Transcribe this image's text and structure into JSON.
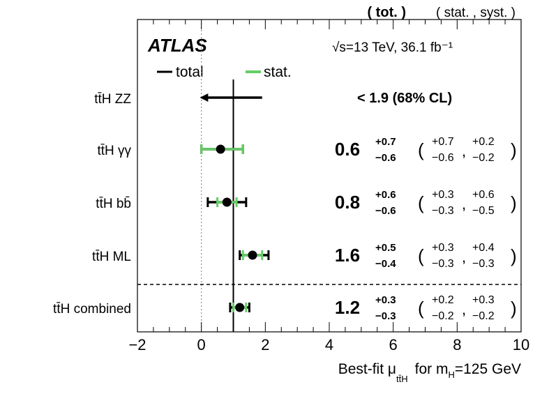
{
  "chart_data": {
    "type": "scatter",
    "experiment": "ATLAS",
    "energy_lumi": "√s=13 TeV, 36.1 fb⁻¹",
    "header_tot": "( tot. )",
    "header_stat_syst": "( stat. , syst. )",
    "legend": {
      "total": "total",
      "stat": "stat."
    },
    "xlabel": "Best-fit μ",
    "xlabel_sub": "tt̄H",
    "xlabel_suffix": "for m",
    "xlabel_suffix_sub": "H",
    "xlabel_end": "=125 GeV",
    "xlim": [
      -2,
      10
    ],
    "xticks": [
      "−2",
      "0",
      "2",
      "4",
      "6",
      "8",
      "10"
    ],
    "sm_reference": 1,
    "zero_reference": 0,
    "colors": {
      "total": "#000000",
      "stat": "#66cc66",
      "point": "#000000"
    },
    "channels": [
      {
        "label": "tt̄H ZZ",
        "limit_text": "< 1.9 (68% CL)",
        "limit": 1.9,
        "arrow_to": -0.05
      },
      {
        "label": "tt̄H γγ",
        "value": 0.6,
        "value_text": "0.6",
        "tot_up": "+0.7",
        "tot_dn": "−0.6",
        "stat_up": "+0.7",
        "stat_dn": "−0.6",
        "syst_up": "+0.2",
        "syst_dn": "−0.2",
        "tot_range": [
          0.0,
          1.3
        ],
        "stat_range": [
          0.0,
          1.3
        ]
      },
      {
        "label": "tt̄H bb̄",
        "value": 0.8,
        "value_text": "0.8",
        "tot_up": "+0.6",
        "tot_dn": "−0.6",
        "stat_up": "+0.3",
        "stat_dn": "−0.3",
        "syst_up": "+0.6",
        "syst_dn": "−0.5",
        "tot_range": [
          0.2,
          1.4
        ],
        "stat_range": [
          0.5,
          1.1
        ]
      },
      {
        "label": "tt̄H ML",
        "value": 1.6,
        "value_text": "1.6",
        "tot_up": "+0.5",
        "tot_dn": "−0.4",
        "stat_up": "+0.3",
        "stat_dn": "−0.3",
        "syst_up": "+0.4",
        "syst_dn": "−0.3",
        "tot_range": [
          1.2,
          2.1
        ],
        "stat_range": [
          1.3,
          1.9
        ]
      },
      {
        "label": "tt̄H combined",
        "value": 1.2,
        "value_text": "1.2",
        "tot_up": "+0.3",
        "tot_dn": "−0.3",
        "stat_up": "+0.2",
        "stat_dn": "−0.2",
        "syst_up": "+0.3",
        "syst_dn": "−0.2",
        "tot_range": [
          0.9,
          1.5
        ],
        "stat_range": [
          1.0,
          1.4
        ]
      }
    ]
  }
}
